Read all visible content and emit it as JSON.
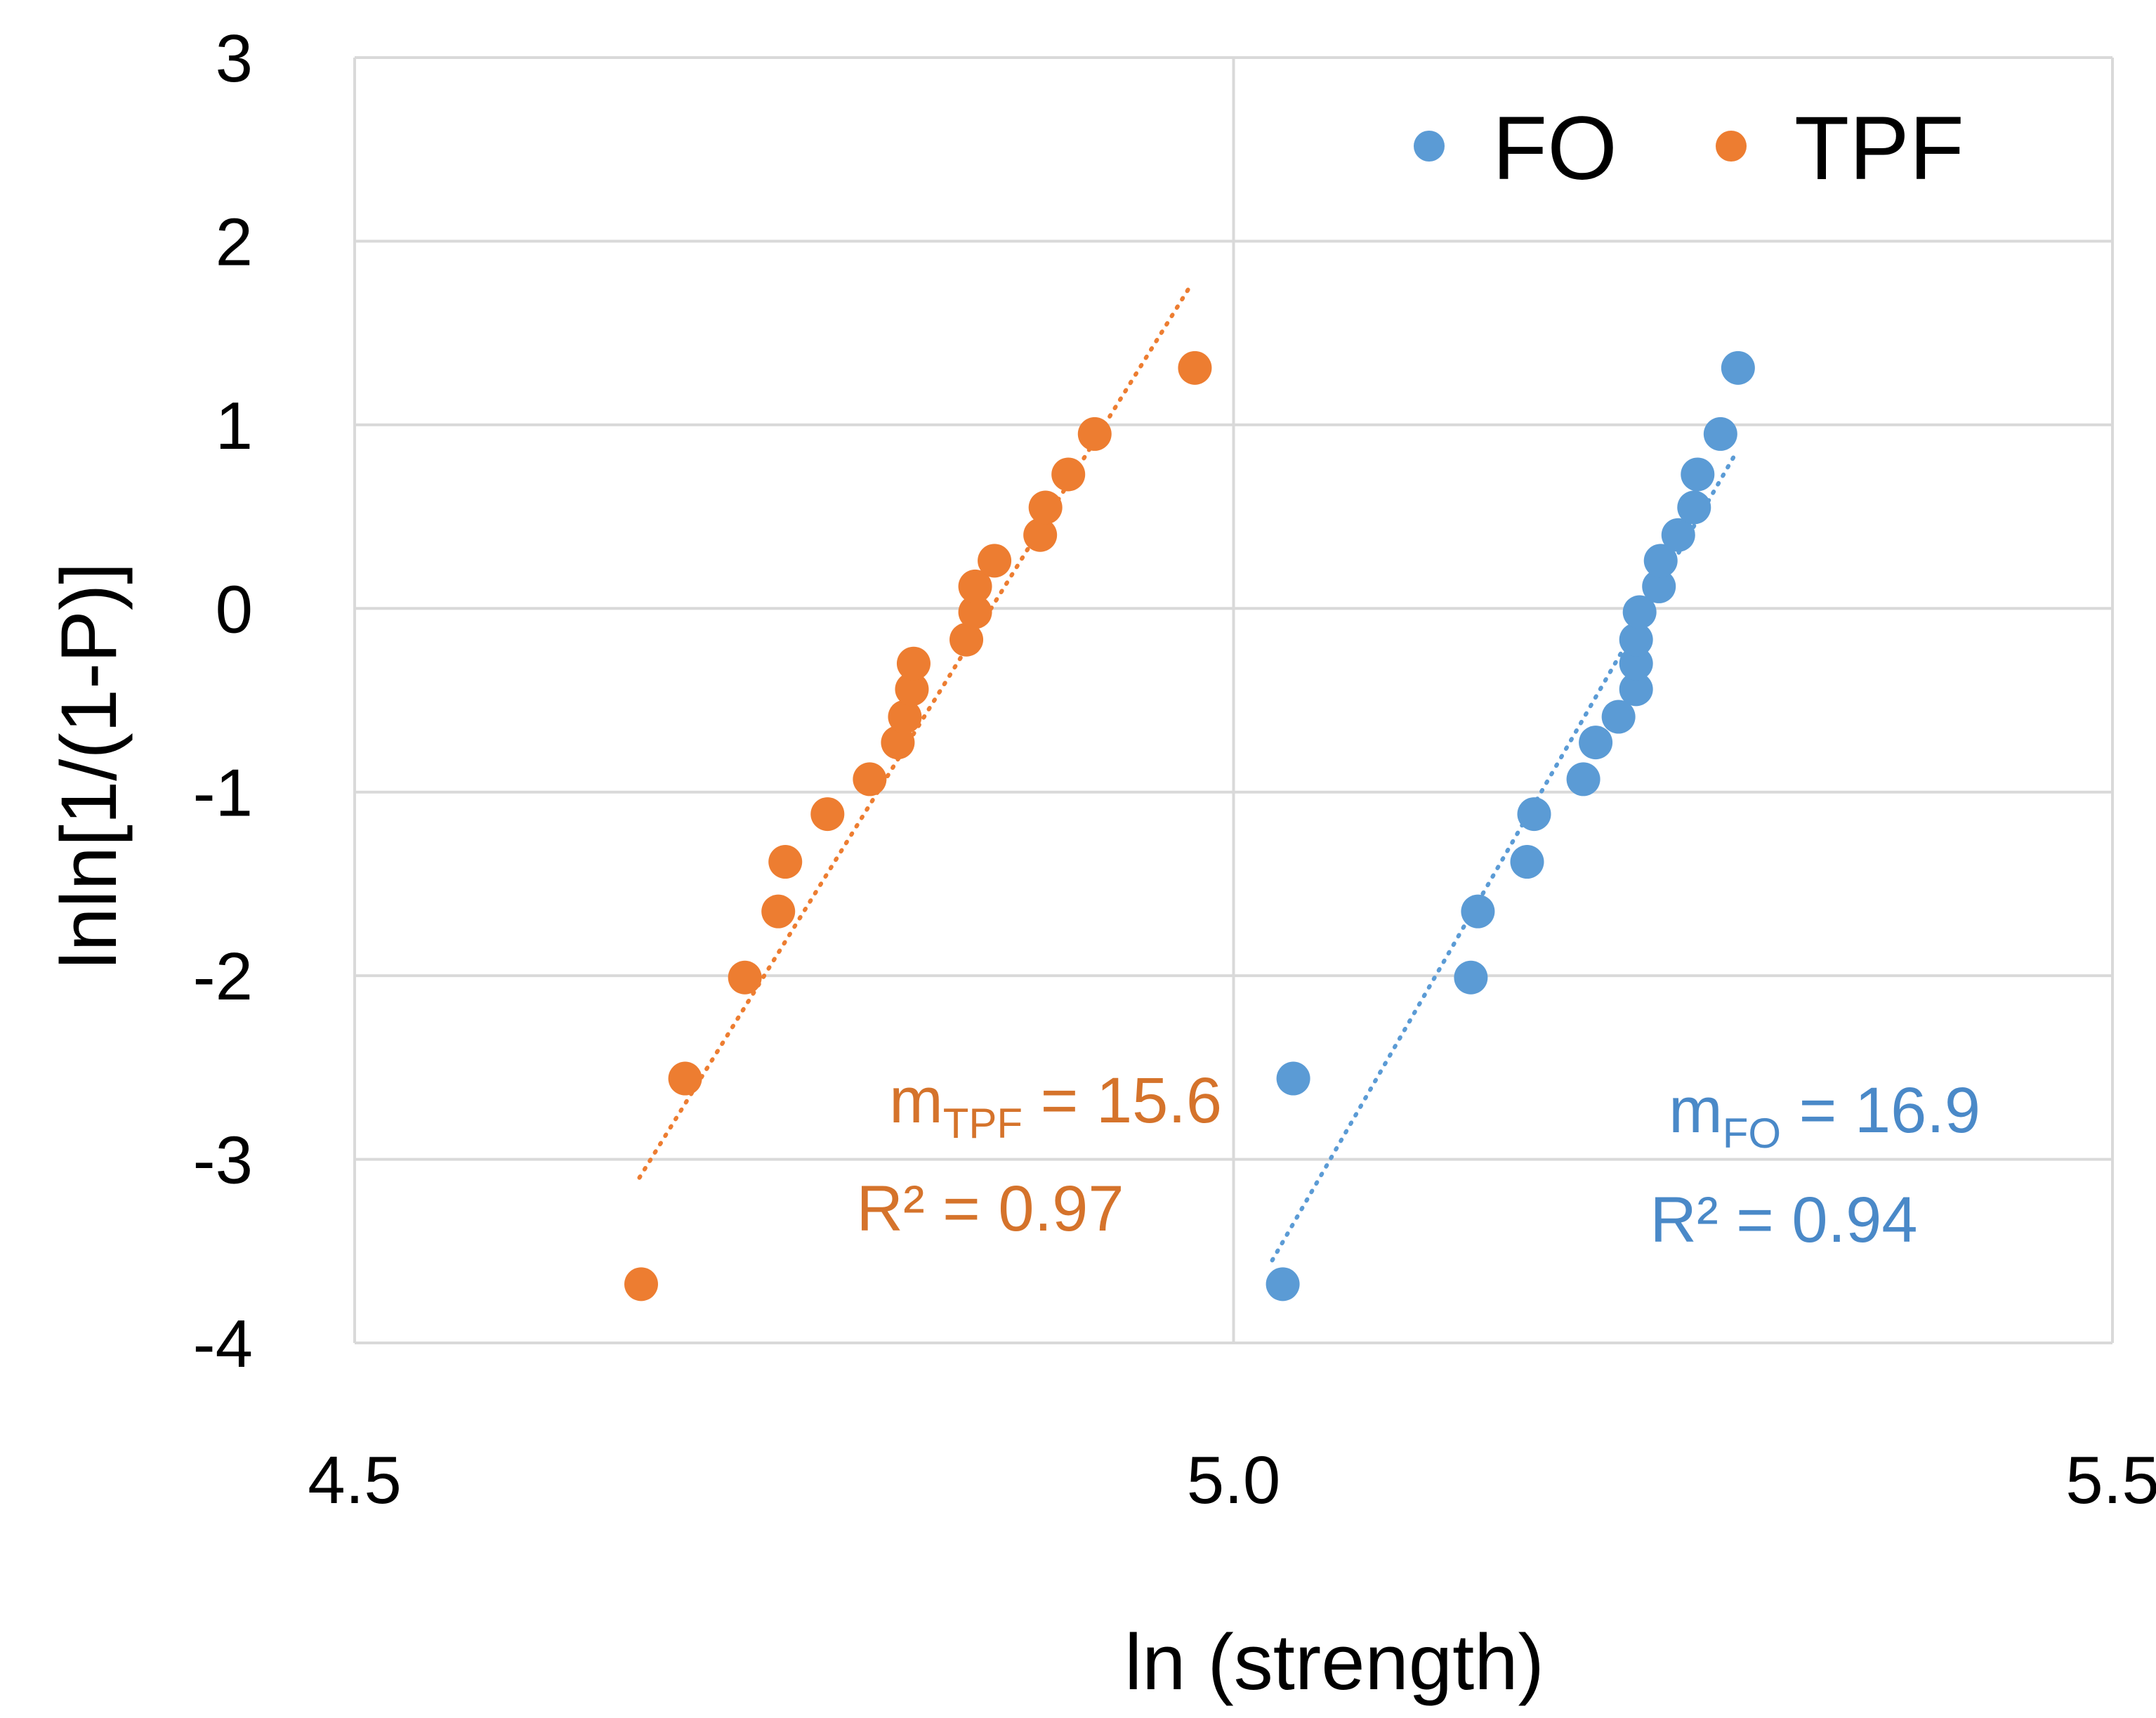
{
  "chart_data": {
    "type": "scatter",
    "title": "",
    "xlabel": "ln (strength)",
    "ylabel": "lnln[1/(1-P)]",
    "xlim": [
      4.5,
      5.5
    ],
    "ylim": [
      -4,
      3
    ],
    "x_ticks": [
      "4.5",
      "5.0",
      "5.5"
    ],
    "y_ticks": [
      "3",
      "2",
      "1",
      "0",
      "-1",
      "-2",
      "-3",
      "-4"
    ],
    "x_tick_values": [
      4.5,
      5.0,
      5.5
    ],
    "y_tick_values": [
      3,
      2,
      1,
      0,
      -1,
      -2,
      -3,
      -4
    ],
    "grid": true,
    "legend_position": "top-right",
    "series": [
      {
        "name": "FO",
        "color": "#5B9BD5",
        "points": [
          [
            5.028,
            -3.68
          ],
          [
            5.034,
            -2.56
          ],
          [
            5.135,
            -2.01
          ],
          [
            5.139,
            -1.65
          ],
          [
            5.167,
            -1.38
          ],
          [
            5.171,
            -1.12
          ],
          [
            5.199,
            -0.93
          ],
          [
            5.206,
            -0.73
          ],
          [
            5.219,
            -0.59
          ],
          [
            5.229,
            -0.44
          ],
          [
            5.229,
            -0.3
          ],
          [
            5.229,
            -0.17
          ],
          [
            5.231,
            -0.02
          ],
          [
            5.242,
            0.12
          ],
          [
            5.243,
            0.26
          ],
          [
            5.253,
            0.4
          ],
          [
            5.262,
            0.55
          ],
          [
            5.264,
            0.73
          ],
          [
            5.277,
            0.95
          ],
          [
            5.287,
            1.31
          ]
        ],
        "trendline": {
          "x": [
            5.022,
            5.286
          ],
          "y": [
            -3.55,
            0.85
          ]
        },
        "annotation": {
          "m_prefix": "m",
          "m_sub": "FO",
          "m_value": " = 16.9",
          "r2": "R² = 0.94"
        }
      },
      {
        "name": "TPF",
        "color": "#ED7D31",
        "points": [
          [
            4.663,
            -3.68
          ],
          [
            4.688,
            -2.56
          ],
          [
            4.722,
            -2.01
          ],
          [
            4.741,
            -1.65
          ],
          [
            4.745,
            -1.38
          ],
          [
            4.769,
            -1.12
          ],
          [
            4.793,
            -0.93
          ],
          [
            4.809,
            -0.73
          ],
          [
            4.813,
            -0.59
          ],
          [
            4.817,
            -0.44
          ],
          [
            4.818,
            -0.3
          ],
          [
            4.848,
            -0.17
          ],
          [
            4.853,
            -0.02
          ],
          [
            4.853,
            0.12
          ],
          [
            4.864,
            0.26
          ],
          [
            4.89,
            0.4
          ],
          [
            4.893,
            0.55
          ],
          [
            4.906,
            0.73
          ],
          [
            4.921,
            0.95
          ],
          [
            4.978,
            1.31
          ]
        ],
        "trendline": {
          "x": [
            4.662,
            4.975
          ],
          "y": [
            -3.1,
            1.75
          ]
        },
        "annotation": {
          "m_prefix": "m",
          "m_sub": "TPF",
          "m_value": " = 15.6",
          "r2": "R² = 0.97"
        }
      }
    ]
  }
}
